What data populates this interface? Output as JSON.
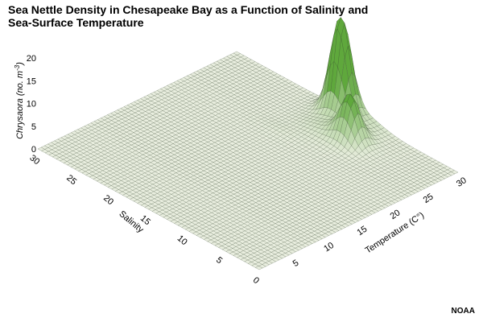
{
  "title_line1": "Sea Nettle Density in Chesapeake Bay as a Function of Salinity and",
  "title_line2": "Sea-Surface Temperature",
  "credit": "NOAA",
  "chart_data": {
    "type": "surface3d",
    "title": "Sea Nettle Density in Chesapeake Bay as a Function of Salinity and Sea-Surface Temperature",
    "x_axis": {
      "label": "Temperature (C°)",
      "range": [
        0,
        30
      ],
      "ticks": [
        0,
        5,
        10,
        15,
        20,
        25,
        30
      ]
    },
    "y_axis": {
      "label": "Salinity",
      "range": [
        0,
        30
      ],
      "ticks": [
        0,
        5,
        10,
        15,
        20,
        25,
        30
      ]
    },
    "z_axis": {
      "label": "Chrysaora (no. m⁻³)",
      "range": [
        0,
        20
      ],
      "ticks": [
        0,
        5,
        10,
        15,
        20
      ]
    },
    "peaks": [
      {
        "temperature": 29,
        "salinity": 15,
        "density": 21
      },
      {
        "temperature": 26,
        "salinity": 11,
        "density": 9
      }
    ],
    "ridge": {
      "temperature_from": 22,
      "temperature_to": 30,
      "salinity_center": 13,
      "density": 2
    },
    "colors": {
      "surface_low": "#e9eedf",
      "surface_high": "#5fa83c",
      "mesh": "#3a4a33"
    }
  }
}
